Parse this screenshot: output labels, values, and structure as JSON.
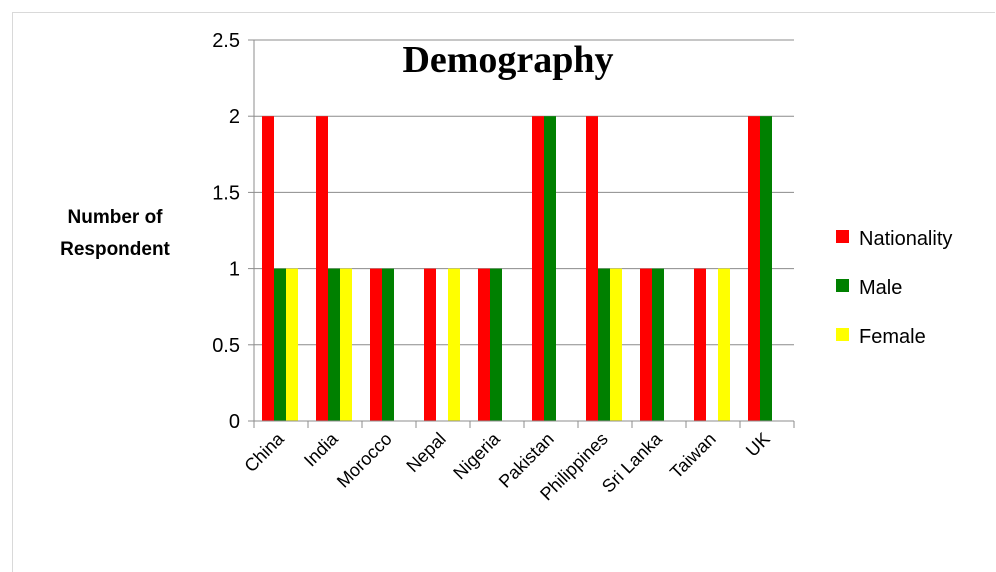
{
  "chart_data": {
    "type": "bar",
    "title": "Demography",
    "xlabel": "",
    "ylabel": "Number of Respondent",
    "ylabel_lines": [
      "Number of",
      "Respondent"
    ],
    "categories": [
      "China",
      "India",
      "Morocco",
      "Nepal",
      "Nigeria",
      "Pakistan",
      "Philippines",
      "Sri Lanka",
      "Taiwan",
      "UK"
    ],
    "series": [
      {
        "name": "Nationality",
        "color": "#ff0000",
        "values": [
          2,
          2,
          1,
          1,
          1,
          2,
          2,
          1,
          1,
          2
        ]
      },
      {
        "name": "Male",
        "color": "#008000",
        "values": [
          1,
          1,
          1,
          0,
          1,
          2,
          1,
          1,
          0,
          2
        ]
      },
      {
        "name": "Female",
        "color": "#ffff00",
        "values": [
          1,
          1,
          0,
          1,
          0,
          0,
          1,
          0,
          1,
          0
        ]
      }
    ],
    "ylim": [
      0,
      2.5
    ],
    "yticks": [
      "0",
      "0.5",
      "1",
      "1.5",
      "2",
      "2.5"
    ],
    "grid": true,
    "legend_position": "right"
  }
}
